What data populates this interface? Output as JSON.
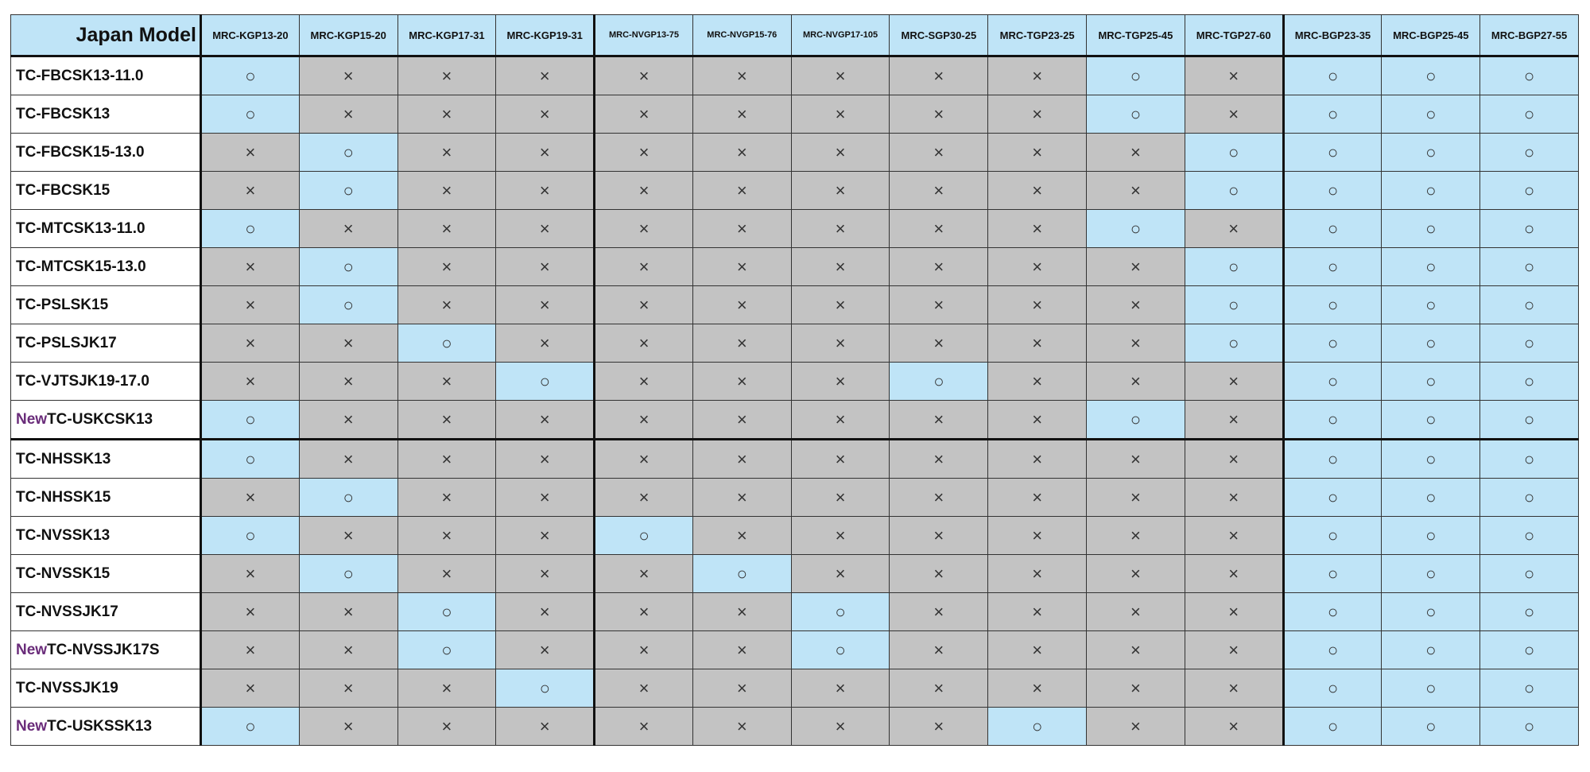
{
  "table": {
    "corner": "Japan Model",
    "columns": [
      "MRC-KGP13-20",
      "MRC-KGP15-20",
      "MRC-KGP17-31",
      "MRC-KGP19-31",
      "MRC-NVGP13-75",
      "MRC-NVGP15-76",
      "MRC-NVGP17-105",
      "MRC-SGP30-25",
      "MRC-TGP23-25",
      "MRC-TGP25-45",
      "MRC-TGP27-60",
      "MRC-BGP23-35",
      "MRC-BGP25-45",
      "MRC-BGP27-55"
    ],
    "cell_colors": {
      "○": "#bfe4f7",
      "×": "#c3c3c3"
    },
    "rows": [
      {
        "label": "TC-FBCSK13-11.0",
        "cells": [
          "○",
          "×",
          "×",
          "×",
          "×",
          "×",
          "×",
          "×",
          "×",
          "○",
          "×",
          "○",
          "○",
          "○"
        ]
      },
      {
        "label": "TC-FBCSK13",
        "cells": [
          "○",
          "×",
          "×",
          "×",
          "×",
          "×",
          "×",
          "×",
          "×",
          "○",
          "×",
          "○",
          "○",
          "○"
        ]
      },
      {
        "label": "TC-FBCSK15-13.0",
        "cells": [
          "×",
          "○",
          "×",
          "×",
          "×",
          "×",
          "×",
          "×",
          "×",
          "×",
          "○",
          "○",
          "○",
          "○"
        ]
      },
      {
        "label": "TC-FBCSK15",
        "cells": [
          "×",
          "○",
          "×",
          "×",
          "×",
          "×",
          "×",
          "×",
          "×",
          "×",
          "○",
          "○",
          "○",
          "○"
        ]
      },
      {
        "label": "TC-MTCSK13-11.0",
        "cells": [
          "○",
          "×",
          "×",
          "×",
          "×",
          "×",
          "×",
          "×",
          "×",
          "○",
          "×",
          "○",
          "○",
          "○"
        ]
      },
      {
        "label": "TC-MTCSK15-13.0",
        "cells": [
          "×",
          "○",
          "×",
          "×",
          "×",
          "×",
          "×",
          "×",
          "×",
          "×",
          "○",
          "○",
          "○",
          "○"
        ]
      },
      {
        "label": "TC-PSLSK15",
        "cells": [
          "×",
          "○",
          "×",
          "×",
          "×",
          "×",
          "×",
          "×",
          "×",
          "×",
          "○",
          "○",
          "○",
          "○"
        ]
      },
      {
        "label": "TC-PSLSJK17",
        "cells": [
          "×",
          "×",
          "○",
          "×",
          "×",
          "×",
          "×",
          "×",
          "×",
          "×",
          "○",
          "○",
          "○",
          "○"
        ]
      },
      {
        "label": "TC-VJTSJK19-17.0",
        "cells": [
          "×",
          "×",
          "×",
          "○",
          "×",
          "×",
          "×",
          "○",
          "×",
          "×",
          "×",
          "○",
          "○",
          "○"
        ]
      },
      {
        "tag": "New",
        "label": "TC-USKCSK13",
        "cells": [
          "○",
          "×",
          "×",
          "×",
          "×",
          "×",
          "×",
          "×",
          "×",
          "○",
          "×",
          "○",
          "○",
          "○"
        ]
      },
      {
        "label": "TC-NHSSK13",
        "cells": [
          "○",
          "×",
          "×",
          "×",
          "×",
          "×",
          "×",
          "×",
          "×",
          "×",
          "×",
          "○",
          "○",
          "○"
        ]
      },
      {
        "label": "TC-NHSSK15",
        "cells": [
          "×",
          "○",
          "×",
          "×",
          "×",
          "×",
          "×",
          "×",
          "×",
          "×",
          "×",
          "○",
          "○",
          "○"
        ]
      },
      {
        "label": "TC-NVSSK13",
        "cells": [
          "○",
          "×",
          "×",
          "×",
          "○",
          "×",
          "×",
          "×",
          "×",
          "×",
          "×",
          "○",
          "○",
          "○"
        ]
      },
      {
        "label": "TC-NVSSK15",
        "cells": [
          "×",
          "○",
          "×",
          "×",
          "×",
          "○",
          "×",
          "×",
          "×",
          "×",
          "×",
          "○",
          "○",
          "○"
        ]
      },
      {
        "label": "TC-NVSSJK17",
        "cells": [
          "×",
          "×",
          "○",
          "×",
          "×",
          "×",
          "○",
          "×",
          "×",
          "×",
          "×",
          "○",
          "○",
          "○"
        ]
      },
      {
        "tag": "New",
        "label": "TC-NVSSJK17S",
        "cells": [
          "×",
          "×",
          "○",
          "×",
          "×",
          "×",
          "○",
          "×",
          "×",
          "×",
          "×",
          "○",
          "○",
          "○"
        ]
      },
      {
        "label": "TC-NVSSJK19",
        "cells": [
          "×",
          "×",
          "×",
          "○",
          "×",
          "×",
          "×",
          "×",
          "×",
          "×",
          "×",
          "○",
          "○",
          "○"
        ]
      },
      {
        "tag": "New",
        "label": "TC-USKSSK13",
        "cells": [
          "○",
          "×",
          "×",
          "×",
          "×",
          "×",
          "×",
          "×",
          "○",
          "×",
          "×",
          "○",
          "○",
          "○"
        ]
      }
    ]
  }
}
